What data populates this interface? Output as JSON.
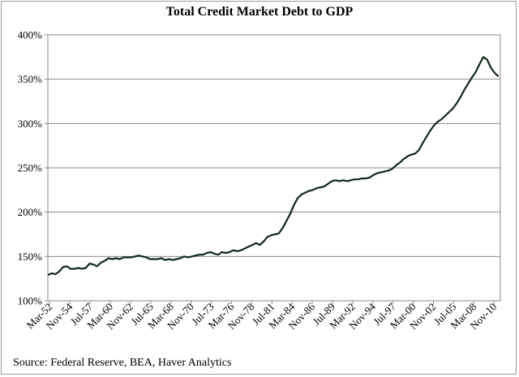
{
  "chart_data": {
    "type": "line",
    "title": "Total Credit Market Debt to GDP",
    "source": "Source:  Federal Reserve, BEA, Haver Analytics",
    "y_ticks": [
      "100%",
      "150%",
      "200%",
      "250%",
      "300%",
      "350%",
      "400%"
    ],
    "y_tick_values": [
      100,
      150,
      200,
      250,
      300,
      350,
      400
    ],
    "ylim": [
      100,
      400
    ],
    "x_ticks": [
      "Mar-52",
      "Nov-54",
      "Jul-57",
      "Mar-60",
      "Nov-62",
      "Jul-65",
      "Mar-68",
      "Nov-70",
      "Jul-73",
      "Mar-76",
      "Nov-78",
      "Jul-81",
      "Mar-84",
      "Nov-86",
      "Jul-89",
      "Mar-92",
      "Nov-94",
      "Jul-97",
      "Mar-00",
      "Nov-02",
      "Jul-05",
      "Mar-08",
      "Nov-10"
    ],
    "x_tick_values": [
      1952.25,
      1954.9167,
      1957.5833,
      1960.25,
      1962.9167,
      1965.5833,
      1968.25,
      1970.9167,
      1973.5833,
      1976.25,
      1978.9167,
      1981.5833,
      1984.25,
      1986.9167,
      1989.5833,
      1992.25,
      1994.9167,
      1997.5833,
      2000.25,
      2002.9167,
      2005.5833,
      2008.25,
      2010.9167
    ],
    "xlim": [
      1952.0,
      2011.75
    ],
    "grid": true,
    "line_color": "#0d2a18",
    "series": [
      {
        "x": [
          1952.0,
          1952.5,
          1953.0,
          1953.5,
          1954.0,
          1954.5,
          1955.0,
          1955.5,
          1956.0,
          1956.5,
          1957.0,
          1957.5,
          1958.0,
          1958.5,
          1959.0,
          1959.5,
          1960.0,
          1960.5,
          1961.0,
          1961.5,
          1962.0,
          1962.5,
          1963.0,
          1963.5,
          1964.0,
          1964.5,
          1965.0,
          1965.5,
          1966.0,
          1966.5,
          1967.0,
          1967.5,
          1968.0,
          1968.5,
          1969.0,
          1969.5,
          1970.0,
          1970.5,
          1971.0,
          1971.5,
          1972.0,
          1972.5,
          1973.0,
          1973.5,
          1974.0,
          1974.5,
          1975.0,
          1975.5,
          1976.0,
          1976.5,
          1977.0,
          1977.5,
          1978.0,
          1978.5,
          1979.0,
          1979.5,
          1980.0,
          1980.5,
          1981.0,
          1981.5,
          1982.0,
          1982.5,
          1983.0,
          1983.5,
          1984.0,
          1984.5,
          1985.0,
          1985.5,
          1986.0,
          1986.5,
          1987.0,
          1987.5,
          1988.0,
          1988.5,
          1989.0,
          1989.5,
          1990.0,
          1990.5,
          1991.0,
          1991.5,
          1992.0,
          1992.5,
          1993.0,
          1993.5,
          1994.0,
          1994.5,
          1995.0,
          1995.5,
          1996.0,
          1996.5,
          1997.0,
          1997.5,
          1998.0,
          1998.5,
          1999.0,
          1999.5,
          2000.0,
          2000.5,
          2001.0,
          2001.5,
          2002.0,
          2002.5,
          2003.0,
          2003.5,
          2004.0,
          2004.5,
          2005.0,
          2005.5,
          2006.0,
          2006.5,
          2007.0,
          2007.5,
          2008.0,
          2008.5,
          2009.0,
          2009.5,
          2010.0,
          2010.5,
          2011.0,
          2011.5
        ],
        "y": [
          129,
          131,
          130,
          133,
          138,
          139,
          136,
          136,
          137,
          136,
          137,
          142,
          141,
          139,
          143,
          145,
          148,
          147,
          148,
          147,
          149,
          149,
          149,
          150,
          151,
          150,
          149,
          147,
          147,
          147,
          148,
          146,
          147,
          146,
          147,
          148,
          150,
          149,
          150,
          151,
          152,
          152,
          154,
          155,
          153,
          152,
          155,
          154,
          155,
          157,
          156,
          157,
          159,
          161,
          163,
          165,
          163,
          167,
          172,
          174,
          175,
          176,
          182,
          190,
          198,
          208,
          216,
          220,
          222,
          224,
          225,
          227,
          228,
          229,
          232,
          235,
          236,
          235,
          236,
          235,
          236,
          237,
          237,
          238,
          238,
          239,
          242,
          244,
          245,
          246,
          247,
          249,
          253,
          256,
          260,
          263,
          265,
          266,
          270,
          278,
          285,
          292,
          298,
          302,
          305,
          309,
          313,
          317,
          323,
          330,
          338,
          345,
          352,
          358,
          367,
          375,
          372,
          363,
          357,
          353
        ]
      }
    ]
  }
}
